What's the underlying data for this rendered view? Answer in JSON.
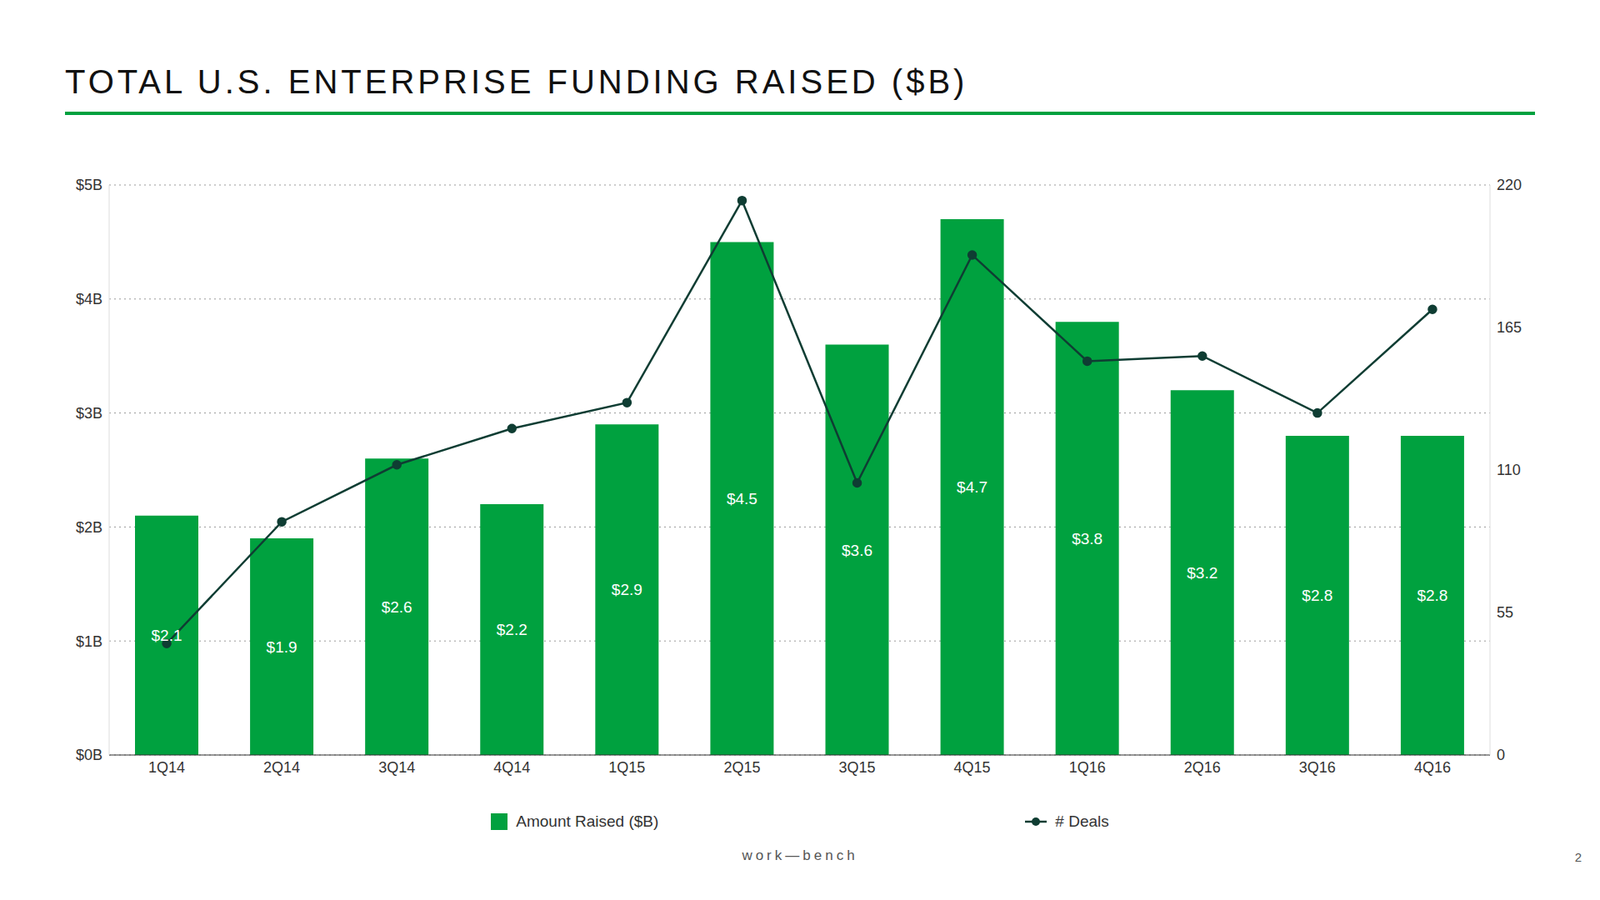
{
  "chart_data": {
    "type": "bar",
    "title": "TOTAL U.S. ENTERPRISE FUNDING RAISED ($B)",
    "categories": [
      "1Q14",
      "2Q14",
      "3Q14",
      "4Q14",
      "1Q15",
      "2Q15",
      "3Q15",
      "4Q15",
      "1Q16",
      "2Q16",
      "3Q16",
      "4Q16"
    ],
    "series": [
      {
        "name": "Amount Raised ($B)",
        "type": "bar",
        "color": "#00a13f",
        "values": [
          2.1,
          1.9,
          2.6,
          2.2,
          2.9,
          4.5,
          3.6,
          4.7,
          3.8,
          3.2,
          2.8,
          2.8
        ],
        "value_labels": [
          "$2.1",
          "$1.9",
          "$2.6",
          "$2.2",
          "$2.9",
          "$4.5",
          "$3.6",
          "$4.7",
          "$3.8",
          "$3.2",
          "$2.8",
          "$2.8"
        ]
      },
      {
        "name": "# Deals",
        "type": "line",
        "color": "#0f3d33",
        "axis": "y2",
        "marker": "circle",
        "values": [
          43,
          90,
          112,
          126,
          136,
          214,
          105,
          193,
          152,
          154,
          132,
          172
        ]
      }
    ],
    "ylim": [
      0,
      5
    ],
    "yticks": [
      {
        "value": 0,
        "label": "$0B"
      },
      {
        "value": 1,
        "label": "$1B"
      },
      {
        "value": 2,
        "label": "$2B"
      },
      {
        "value": 3,
        "label": "$3B"
      },
      {
        "value": 4,
        "label": "$4B"
      },
      {
        "value": 5,
        "label": "$5B"
      }
    ],
    "y2lim": [
      0,
      220
    ],
    "y2ticks": [
      0,
      55,
      110,
      165,
      220
    ],
    "grid": true,
    "data_labels": true,
    "legend": "bottom",
    "annotations": [
      "work—bench",
      "2"
    ]
  }
}
